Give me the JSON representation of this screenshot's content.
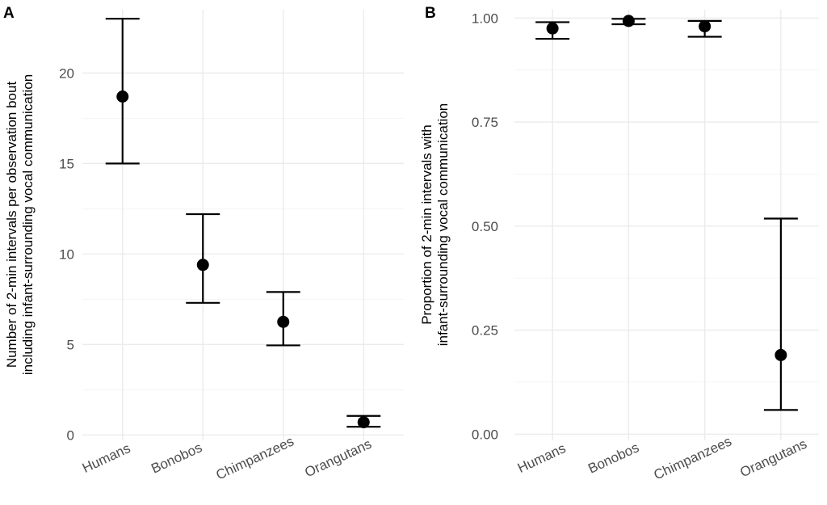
{
  "chart_data": [
    {
      "type": "errorbar",
      "panel_label": "A",
      "ylabel_lines": [
        "Number of 2-min intervals per observation bout",
        "including infant-surrounding vocal communication"
      ],
      "categories": [
        "Humans",
        "Bonobos",
        "Chimpanzees",
        "Orangutans"
      ],
      "values": [
        18.7,
        9.4,
        6.25,
        0.7
      ],
      "lower": [
        15.0,
        7.3,
        4.95,
        0.45
      ],
      "upper": [
        23.0,
        12.2,
        7.9,
        1.05
      ],
      "ylim": [
        -0.3,
        23.5
      ],
      "yticks": [
        0,
        5,
        10,
        15,
        20
      ],
      "ytick_labels": [
        "0",
        "5",
        "10",
        "15",
        "20"
      ],
      "grid": true
    },
    {
      "type": "errorbar",
      "panel_label": "B",
      "ylabel_lines": [
        "Proportion of 2-min intervals with",
        "infant-surrounding vocal communication"
      ],
      "categories": [
        "Humans",
        "Bonobos",
        "Chimpanzees",
        "Orangutans"
      ],
      "values": [
        0.975,
        0.993,
        0.98,
        0.19
      ],
      "lower": [
        0.95,
        0.985,
        0.955,
        0.058
      ],
      "upper": [
        0.99,
        0.998,
        0.993,
        0.518
      ],
      "ylim": [
        -0.015,
        1.02
      ],
      "yticks": [
        0,
        0.25,
        0.5,
        0.75,
        1
      ],
      "ytick_labels": [
        "0.00",
        "0.25",
        "0.50",
        "0.75",
        "1.00"
      ],
      "grid": true
    }
  ]
}
